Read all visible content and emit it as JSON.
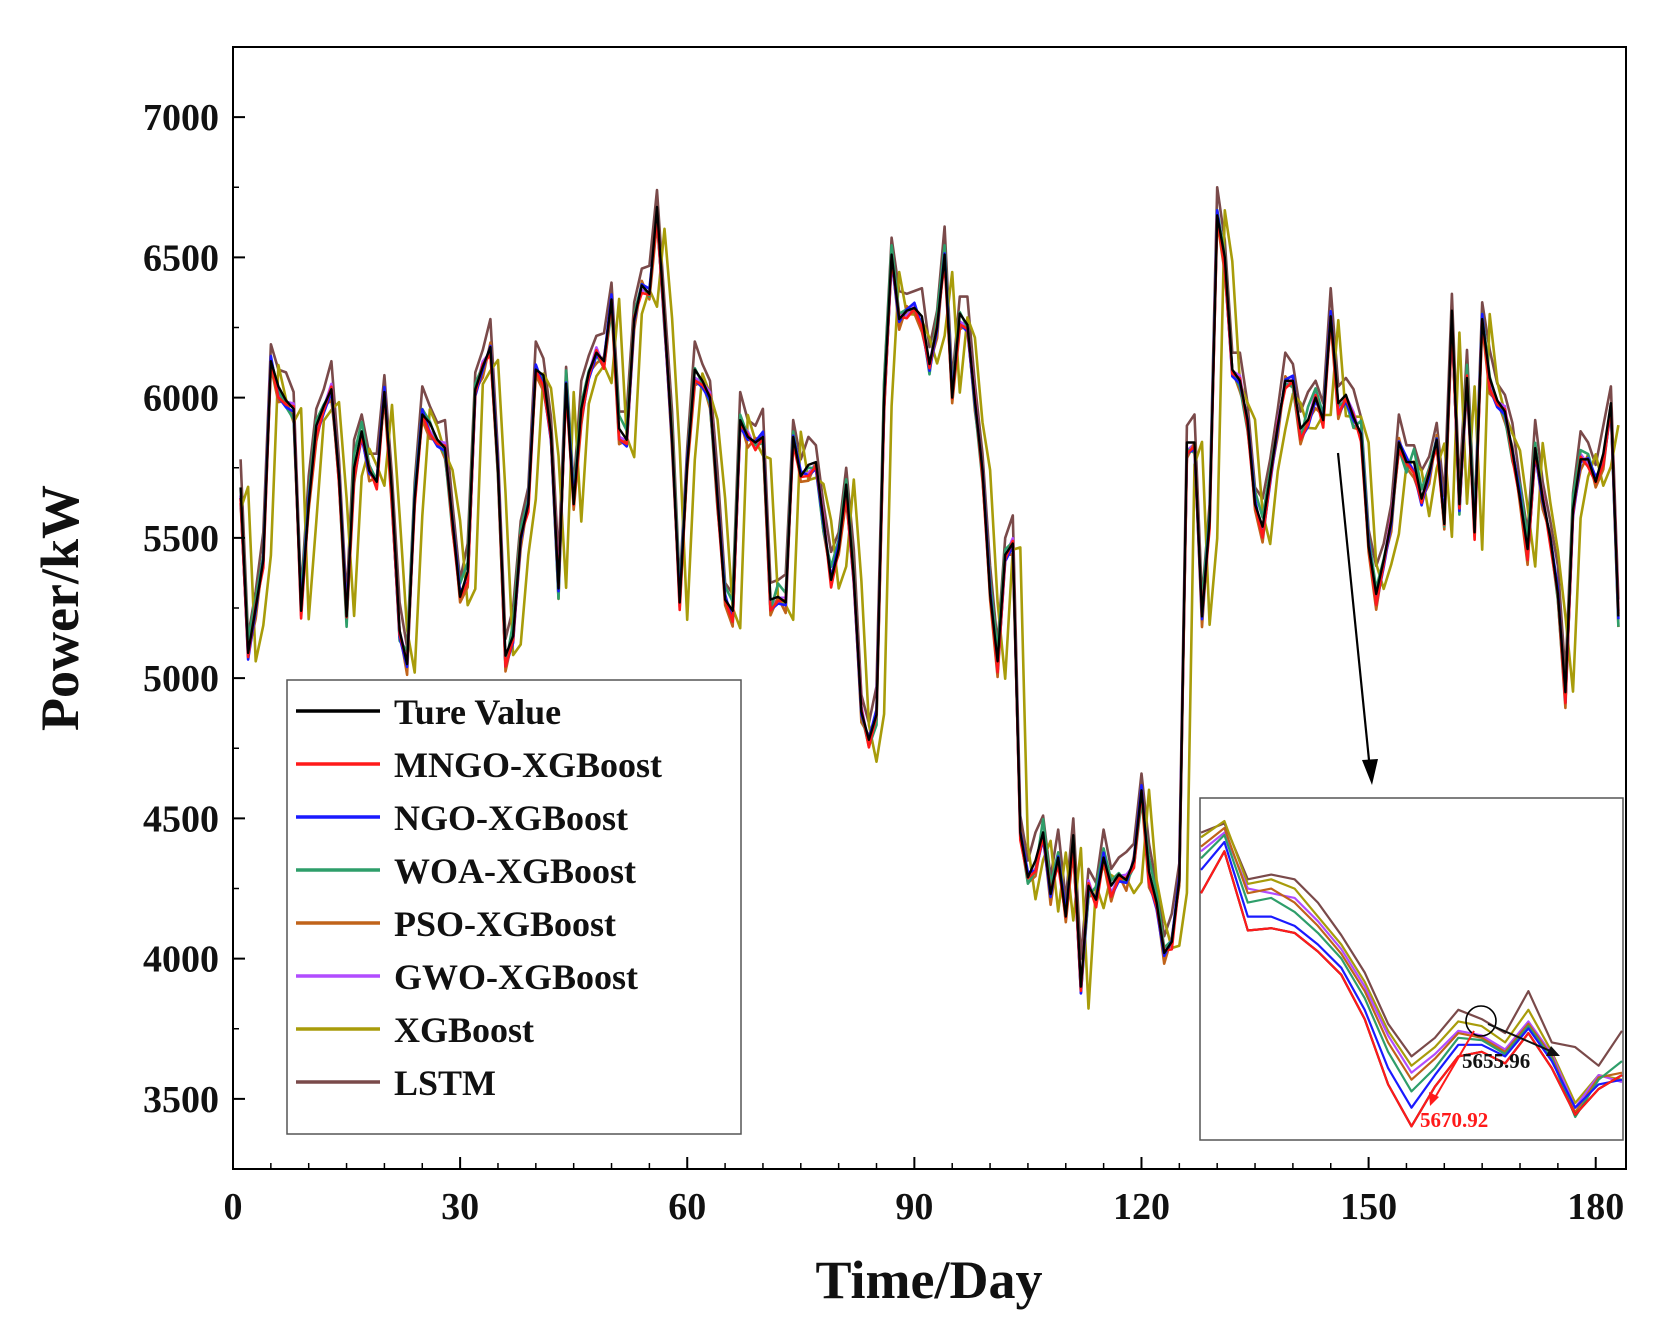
{
  "chart_data": {
    "type": "line",
    "title": "",
    "xlabel": "Time/Day",
    "ylabel": "Power/kW",
    "xlim": [
      0,
      184
    ],
    "ylim": [
      3250,
      7250
    ],
    "x_ticks": [
      0,
      30,
      60,
      90,
      120,
      150,
      180
    ],
    "y_ticks": [
      3500,
      4000,
      4500,
      5000,
      5500,
      6000,
      6500,
      7000
    ],
    "grid": false,
    "legend_position": "bottom-left",
    "x_start": 1,
    "true_series": [
      5680,
      5090,
      5250,
      5420,
      6130,
      6040,
      5990,
      5960,
      5240,
      5620,
      5900,
      5970,
      6030,
      5720,
      5220,
      5750,
      5880,
      5740,
      5700,
      6020,
      5660,
      5170,
      5050,
      5640,
      5940,
      5910,
      5850,
      5820,
      5560,
      5290,
      5380,
      6030,
      6110,
      6180,
      5740,
      5080,
      5150,
      5500,
      5620,
      6100,
      6080,
      5870,
      5320,
      6050,
      5620,
      5960,
      6090,
      6160,
      6130,
      6350,
      5890,
      5850,
      6280,
      6400,
      6370,
      6680,
      6280,
      5850,
      5270,
      5760,
      6100,
      6060,
      6000,
      5640,
      5280,
      5240,
      5920,
      5860,
      5840,
      5860,
      5280,
      5290,
      5270,
      5860,
      5720,
      5760,
      5770,
      5560,
      5350,
      5460,
      5690,
      5360,
      4880,
      4780,
      4870,
      6000,
      6510,
      6280,
      6310,
      6320,
      6290,
      6120,
      6250,
      6510,
      6000,
      6300,
      6260,
      5990,
      5740,
      5300,
      5060,
      5440,
      5480,
      4450,
      4290,
      4350,
      4450,
      4230,
      4360,
      4150,
      4440,
      3900,
      4260,
      4210,
      4360,
      4260,
      4300,
      4280,
      4350,
      4600,
      4310,
      4200,
      4020,
      4060,
      4280,
      5840,
      5840,
      5220,
      5560,
      6650,
      6500,
      6100,
      6060,
      5920,
      5620,
      5540,
      5720,
      5900,
      6060,
      6060,
      5890,
      5920,
      6000,
      5920,
      6290,
      5980,
      6010,
      5930,
      5870,
      5470,
      5300,
      5420,
      5560,
      5840,
      5770,
      5770,
      5640,
      5730,
      5850,
      5550,
      6310,
      5620,
      6070,
      5520,
      6280,
      6070,
      5990,
      5950,
      5810,
      5640,
      5460,
      5820,
      5640,
      5500,
      5300,
      4950,
      5600,
      5780,
      5780,
      5700,
      5800,
      5980,
      5220
    ],
    "series": [
      {
        "name": "Ture Value",
        "color": "#000000",
        "offset": 0,
        "shift": 0
      },
      {
        "name": "MNGO-XGBoost",
        "color": "#ff1a1a",
        "offset": 0,
        "shift": 0
      },
      {
        "name": "NGO-XGBoost",
        "color": "#1a1aff",
        "offset": 0,
        "shift": 0
      },
      {
        "name": "WOA-XGBoost",
        "color": "#2e9e6a",
        "offset": 0,
        "shift": 0
      },
      {
        "name": "PSO-XGBoost",
        "color": "#c0631a",
        "offset": 0,
        "shift": 0
      },
      {
        "name": "GWO-XGBoost",
        "color": "#b14cff",
        "offset": 0,
        "shift": 0
      },
      {
        "name": "XGBoost",
        "color": "#a89c0a",
        "offset": 0,
        "shift": 1
      },
      {
        "name": "LSTM",
        "color": "#7a4a4a",
        "offset": 0,
        "shift": 0
      }
    ],
    "inset": {
      "series": [
        {
          "name": "Ture Value",
          "color": "#000000",
          "values": [
            5700,
            5880,
            5540,
            5550,
            5530,
            5450,
            5350,
            5160,
            4880,
            4700,
            4870,
            5000,
            5020,
            4970,
            5100,
            4950,
            4750,
            4860,
            4920
          ]
        },
        {
          "name": "MNGO-XGBoost",
          "color": "#ff1a1a",
          "values": [
            5700,
            5880,
            5540,
            5550,
            5530,
            5450,
            5350,
            5160,
            4880,
            4700,
            4870,
            5000,
            5020,
            4970,
            5100,
            4950,
            4750,
            4860,
            4920
          ]
        },
        {
          "name": "NGO-XGBoost",
          "color": "#1a1aff",
          "values": [
            5800,
            5920,
            5600,
            5600,
            5560,
            5480,
            5380,
            5200,
            4950,
            4780,
            4920,
            5050,
            5050,
            5000,
            5120,
            4980,
            4780,
            4880,
            4900
          ]
        },
        {
          "name": "WOA-XGBoost",
          "color": "#2e9e6a",
          "values": [
            5850,
            5950,
            5660,
            5680,
            5620,
            5530,
            5420,
            5250,
            5020,
            4850,
            4950,
            5080,
            5070,
            5010,
            5130,
            4990,
            4740,
            4900,
            4980
          ]
        },
        {
          "name": "PSO-XGBoost",
          "color": "#c0631a",
          "values": [
            5900,
            5980,
            5700,
            5720,
            5660,
            5560,
            5440,
            5280,
            5060,
            4900,
            4990,
            5100,
            5080,
            5020,
            5140,
            5000,
            4760,
            4910,
            4930
          ]
        },
        {
          "name": "GWO-XGBoost",
          "color": "#b14cff",
          "values": [
            5880,
            5960,
            5720,
            5700,
            5680,
            5580,
            5460,
            5300,
            5090,
            4930,
            5010,
            5110,
            5090,
            5030,
            5150,
            5010,
            4780,
            4920,
            4890
          ]
        },
        {
          "name": "XGBoost",
          "color": "#a89c0a",
          "values": [
            5940,
            6010,
            5740,
            5760,
            5720,
            5600,
            5480,
            5320,
            5110,
            4960,
            5040,
            5150,
            5130,
            5060,
            5200,
            5020,
            4800,
            4920,
            4900
          ]
        },
        {
          "name": "LSTM",
          "color": "#7a4a4a",
          "values": [
            5960,
            6000,
            5760,
            5780,
            5760,
            5660,
            5520,
            5360,
            5140,
            5000,
            5080,
            5200,
            5160,
            5100,
            5280,
            5060,
            5040,
            4960,
            5110
          ]
        }
      ],
      "ylim": [
        4650,
        6100
      ],
      "callout_black": "5655.96",
      "callout_red": "5670.92",
      "callout_black_color": "#111111",
      "callout_red_color": "#ff1a1a"
    }
  }
}
